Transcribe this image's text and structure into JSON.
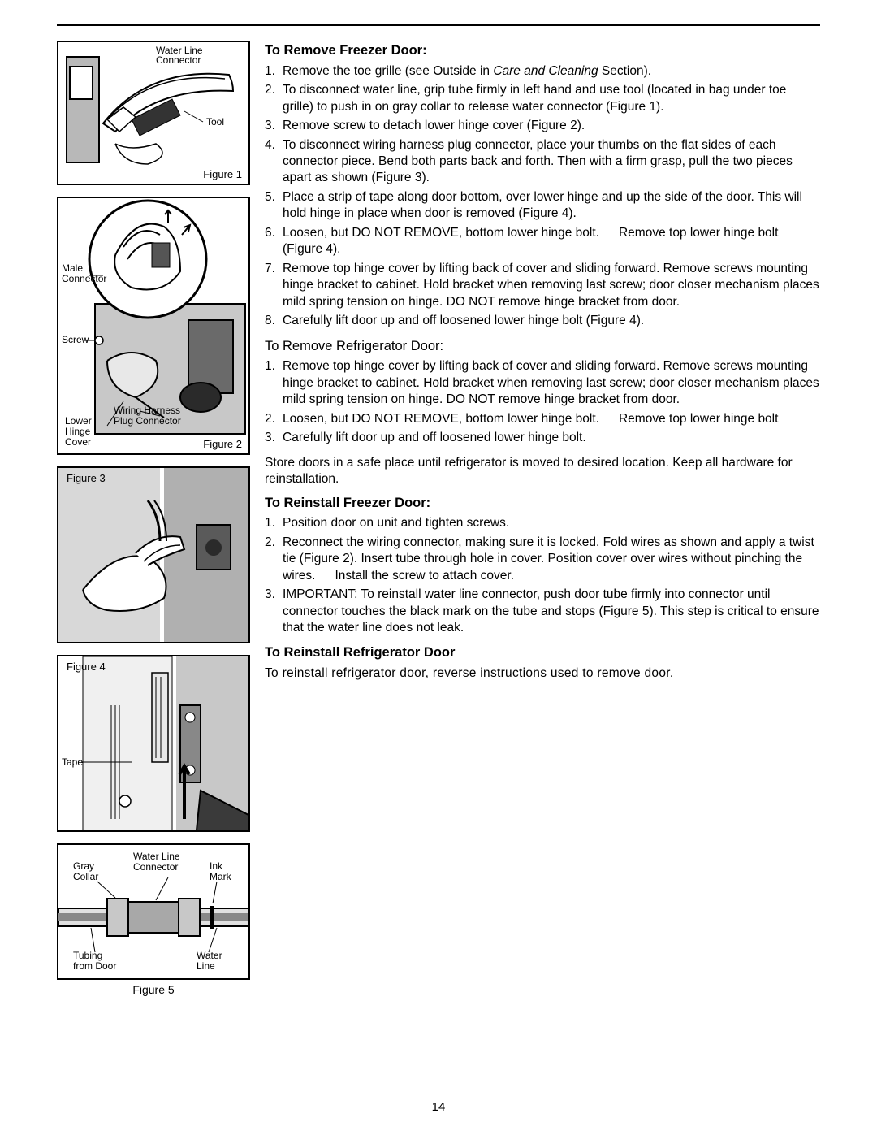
{
  "pageNumber": "14",
  "figures": {
    "f1": {
      "caption": "Figure 1",
      "labels": {
        "waterline": "Water Line",
        "connector": "Connector",
        "tool": "Tool"
      }
    },
    "f2": {
      "caption": "Figure 2",
      "labels": {
        "male": "Male",
        "connector": "Connector",
        "screw": "Screw",
        "wiring": "Wiring Harness",
        "plug": "Plug Connector",
        "lower": "Lower",
        "hinge": "Hinge",
        "cover": "Cover"
      }
    },
    "f3": {
      "caption": "Figure 3"
    },
    "f4": {
      "caption": "Figure 4",
      "labels": {
        "tape": "Tape"
      }
    },
    "f5": {
      "caption": "Figure 5",
      "labels": {
        "gray": "Gray",
        "collar": "Collar",
        "waterline": "Water Line",
        "connector": "Connector",
        "ink": "Ink",
        "mark": "Mark",
        "tubing": "Tubing",
        "fromdoor": "from Door",
        "water": "Water",
        "line": "Line"
      }
    }
  },
  "sections": {
    "s1": {
      "title": "To Remove Freezer Door:",
      "items": [
        "Remove the toe grille (see  Outside  in <em class='ital'>Care and Cleaning</em> Section).",
        "To disconnect water line, grip tube firmly in left hand and use tool (located in bag under toe grille) to push in on gray collar to release water connector (Figure 1).",
        "Remove screw to detach lower hinge cover (Figure 2).",
        "To disconnect wiring harness plug connector, place your thumbs on the flat sides of each connector piece. Bend both parts back and forth. Then with a firm grasp, pull the two pieces apart as shown (Figure 3).",
        "Place a strip of tape along door bottom, over lower hinge and up the side of the door.  This will hold hinge in place when door is removed (Figure 4).",
        "Loosen, but DO NOT REMOVE, bottom lower hinge bolt.<span class='gap'></span>Remove top lower hinge bolt (Figure 4).",
        "Remove top hinge cover by lifting back of cover and sliding forward. Remove screws mounting hinge bracket to cabinet. Hold bracket when removing last screw; door closer mechanism places mild spring tension  on hinge. DO NOT remove hinge bracket from door.",
        "Carefully lift door up and off loosened lower hinge bolt (Figure 4)."
      ]
    },
    "s2": {
      "title": "To Remove Refrigerator Door:",
      "items": [
        "Remove top hinge cover by lifting back of cover and sliding forward. Remove screws mounting hinge bracket to cabinet. Hold bracket when removing last screw; door closer mechanism places mild spring tension on hinge. DO NOT remove hinge bracket from door.",
        "Loosen, but DO NOT REMOVE, bottom lower hinge bolt.<span class='gap'></span>Remove top lower hinge bolt",
        "Carefully lift door up and off loosened lower hinge bolt."
      ],
      "note": "Store doors in a safe place until refrigerator is moved to desired location. Keep all hardware for reinstallation."
    },
    "s3": {
      "title": "To Reinstall Freezer Door:",
      "items": [
        "Position door on unit and tighten screws.",
        "Reconnect the wiring connector, making sure it is locked. Fold wires as shown and apply a twist tie (Figure 2).  Insert tube through hole in cover. Position cover over wires without pinching the wires.<span class='gap'></span>Install the screw to attach cover.",
        "IMPORTANT: To reinstall water line connector, push door tube firmly into connector until connector touches the black mark on the tube and stops (Figure 5). This step is critical to ensure that the water line does not leak."
      ]
    },
    "s4": {
      "title": "To Reinstall Refrigerator Door",
      "text": "To reinstall refrigerator door, reverse instructions used to remove door."
    }
  }
}
